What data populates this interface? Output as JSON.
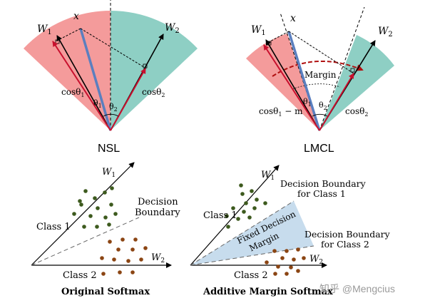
{
  "top_left": {
    "x_label": "x",
    "w1_label": "W",
    "w1_sub": "1",
    "w2_label": "W",
    "w2_sub": "2",
    "cos1": "cosθ",
    "cos1_sub": "1",
    "cos2": "cosθ",
    "cos2_sub": "2",
    "theta1": "θ",
    "theta1_sub": "1",
    "theta2": "θ",
    "theta2_sub": "2",
    "title": "NSL"
  },
  "top_right": {
    "x_label": "x",
    "w1_label": "W",
    "w1_sub": "1",
    "w2_label": "W",
    "w2_sub": "2",
    "margin_label": "Margin",
    "cos1": "cosθ",
    "cos1_sub": "1",
    "cos1_suffix": " − m",
    "cos2": "cosθ",
    "cos2_sub": "2",
    "theta1": "θ",
    "theta1_sub": "1",
    "theta2": "θ",
    "theta2_sub": "2",
    "title": "LMCL"
  },
  "bottom_left": {
    "w1_label": "W",
    "w1_sub": "1",
    "w2_label": "W",
    "w2_sub": "2",
    "class1": "Class 1",
    "class2": "Class 2",
    "decision_line1": "Decision",
    "decision_line2": "Boundary",
    "caption": "Original Softmax"
  },
  "bottom_right": {
    "w1_label": "W",
    "w1_sub": "1",
    "w2_label": "W",
    "w2_sub": "2",
    "class1": "Class 1",
    "class2": "Class 2",
    "db1_line1": "Decision Boundary",
    "db1_line2": "for Class 1",
    "db2_line1": "Decision Boundary",
    "db2_line2": "for Class 2",
    "margin_line1": "Fixed Decision",
    "margin_line2": "Margin",
    "caption": "Additive Margin Softmax"
  },
  "watermark": "知乎 @Mengcius",
  "colors": {
    "pink": "#f49b9b",
    "teal": "#8ecfc4",
    "blue_vector": "#5b7fbf",
    "red_arrow": "#c8102e",
    "class1_dot": "#3d5a1e",
    "class2_dot": "#8b4513",
    "margin_fill": "#c7dced"
  }
}
